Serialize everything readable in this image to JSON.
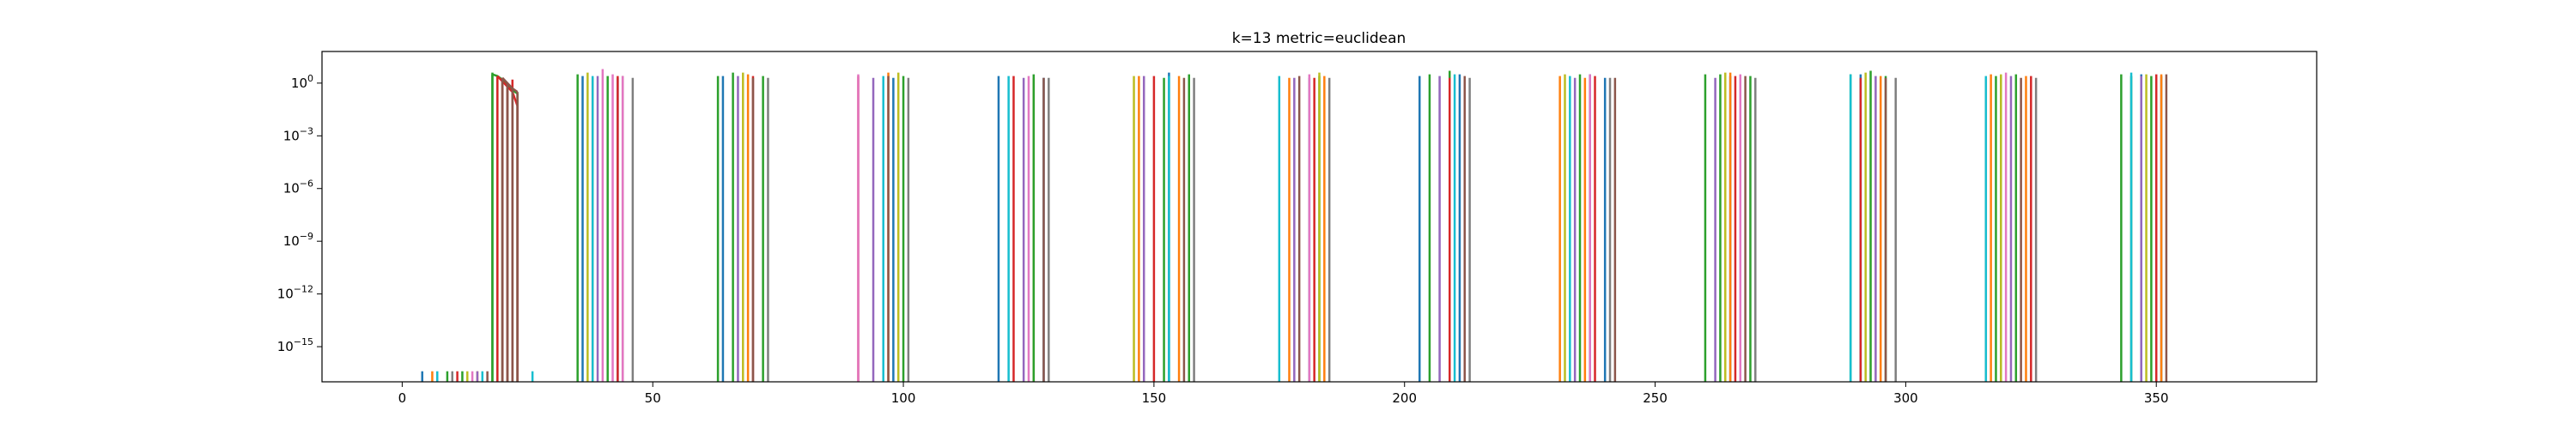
{
  "chart_data": {
    "type": "line",
    "title": "k=13 metric=euclidean",
    "xlabel": "",
    "ylabel": "",
    "yscale": "log",
    "xlim": [
      -16,
      382
    ],
    "ylim_exponent": [
      -17,
      1.8
    ],
    "x_ticks": [
      {
        "value": 0,
        "label": "0"
      },
      {
        "value": 50,
        "label": "50"
      },
      {
        "value": 100,
        "label": "100"
      },
      {
        "value": 150,
        "label": "150"
      },
      {
        "value": 200,
        "label": "200"
      },
      {
        "value": 250,
        "label": "250"
      },
      {
        "value": 300,
        "label": "300"
      },
      {
        "value": 350,
        "label": "350"
      }
    ],
    "y_ticks": [
      {
        "exponent": 0,
        "base": "10",
        "sup": "0"
      },
      {
        "exponent": -3,
        "base": "10",
        "sup": "−3"
      },
      {
        "exponent": -6,
        "base": "10",
        "sup": "−6"
      },
      {
        "exponent": -9,
        "base": "10",
        "sup": "−9"
      },
      {
        "exponent": -12,
        "base": "10",
        "sup": "−12"
      },
      {
        "exponent": -15,
        "base": "10",
        "sup": "−15"
      }
    ],
    "grid": false,
    "legend": "none",
    "palette": [
      "#1f77b4",
      "#ff7f0e",
      "#2ca02c",
      "#d62728",
      "#9467bd",
      "#8c564b",
      "#e377c2",
      "#7f7f7f",
      "#bcbd22",
      "#17becf"
    ],
    "series": [
      {
        "color": "#1f77b4",
        "spikes": [
          4,
          36,
          43,
          64,
          98,
          119,
          128,
          153,
          181,
          203,
          211,
          237,
          240,
          265,
          291,
          319,
          347,
          351
        ],
        "peaks": [
          0.3,
          0.4,
          0.3,
          0.4,
          0.3,
          0.4,
          0.3,
          0.6,
          0.3,
          0.4,
          0.5,
          0.5,
          0.3,
          0.4,
          0.5,
          0.4,
          0.5,
          0.4
        ]
      },
      {
        "color": "#ff7f0e",
        "spikes": [
          6,
          15,
          38,
          69,
          97,
          126,
          147,
          155,
          177,
          184,
          231,
          236,
          265,
          295,
          317,
          324,
          351
        ],
        "peaks": [
          0.3,
          0.3,
          0.3,
          0.5,
          0.6,
          0.3,
          0.4,
          0.4,
          0.3,
          0.4,
          0.4,
          0.3,
          0.6,
          0.4,
          0.5,
          0.4,
          0.5
        ]
      },
      {
        "color": "#2ca02c",
        "spikes": [
          9,
          12,
          18,
          35,
          41,
          63,
          66,
          72,
          100,
          126,
          152,
          157,
          183,
          205,
          209,
          235,
          260,
          263,
          269,
          289,
          293,
          296,
          318,
          322,
          343,
          345,
          349
        ],
        "peaks": [
          0.3,
          0.3,
          0.6,
          0.5,
          0.4,
          0.4,
          0.6,
          0.4,
          0.4,
          0.5,
          0.3,
          0.5,
          0.4,
          0.5,
          0.7,
          0.5,
          0.5,
          0.5,
          0.4,
          0.5,
          0.7,
          0.4,
          0.4,
          0.5,
          0.5,
          0.4,
          0.4
        ]
      },
      {
        "color": "#d62728",
        "spikes": [
          11,
          22,
          43,
          70,
          91,
          122,
          150,
          182,
          209,
          238,
          266,
          291,
          316,
          325,
          350
        ],
        "peaks": [
          0.3,
          0.2,
          0.4,
          0.4,
          0.4,
          0.4,
          0.4,
          0.3,
          0.3,
          0.4,
          0.4,
          0.3,
          0.3,
          0.4,
          0.5
        ]
      },
      {
        "color": "#9467bd",
        "spikes": [
          15,
          39,
          67,
          94,
          124,
          148,
          178,
          207,
          234,
          262,
          294,
          321,
          347
        ],
        "peaks": [
          0.3,
          0.4,
          0.4,
          0.3,
          0.3,
          0.4,
          0.3,
          0.4,
          0.3,
          0.3,
          0.4,
          0.4,
          0.4
        ]
      },
      {
        "color": "#8c564b",
        "spikes": [
          17,
          44,
          70,
          97,
          128,
          156,
          179,
          212,
          242,
          268,
          296,
          323,
          352
        ],
        "peaks": [
          0.4,
          0.4,
          0.3,
          0.4,
          0.3,
          0.3,
          0.4,
          0.4,
          0.3,
          0.4,
          0.3,
          0.3,
          0.5
        ]
      },
      {
        "color": "#e377c2",
        "spikes": [
          14,
          40,
          42,
          44,
          91,
          125,
          181,
          237,
          267,
          320
        ],
        "peaks": [
          0.3,
          0.8,
          0.5,
          0.4,
          0.5,
          0.4,
          0.5,
          0.5,
          0.5,
          0.6
        ]
      },
      {
        "color": "#7f7f7f",
        "spikes": [
          10,
          20,
          46,
          73,
          101,
          129,
          158,
          185,
          213,
          241,
          270,
          298,
          326
        ],
        "peaks": [
          0.3,
          0.3,
          0.3,
          0.3,
          0.3,
          0.3,
          0.3,
          0.3,
          0.3,
          0.3,
          0.3,
          0.3,
          0.3
        ]
      },
      {
        "color": "#bcbd22",
        "spikes": [
          13,
          19,
          37,
          68,
          99,
          146,
          183,
          232,
          264,
          292,
          319,
          348
        ],
        "peaks": [
          0.3,
          0.4,
          0.6,
          0.6,
          0.6,
          0.4,
          0.6,
          0.5,
          0.6,
          0.6,
          0.5,
          0.5
        ]
      },
      {
        "color": "#17becf",
        "spikes": [
          7,
          16,
          26,
          38,
          96,
          121,
          153,
          175,
          210,
          233,
          289,
          316,
          345
        ],
        "peaks": [
          0.3,
          0.3,
          0.3,
          0.4,
          0.4,
          0.4,
          0.4,
          0.4,
          0.5,
          0.4,
          0.5,
          0.4,
          0.6
        ]
      },
      {
        "color": "#2ca02c",
        "kind": "decay",
        "x": [
          18,
          19,
          20,
          21,
          22,
          23
        ],
        "y_exponent": [
          0.5,
          0.4,
          0.2,
          -0.1,
          -0.4,
          -0.6
        ]
      },
      {
        "color": "#d62728",
        "kind": "decay",
        "x": [
          19,
          20,
          21,
          22,
          23
        ],
        "y_exponent": [
          0.4,
          0.1,
          -0.2,
          -0.5,
          -1.3
        ]
      },
      {
        "color": "#8c564b",
        "kind": "decay",
        "x": [
          20,
          21,
          22,
          23
        ],
        "y_exponent": [
          0.3,
          0.0,
          -0.3,
          -0.5
        ]
      }
    ]
  }
}
